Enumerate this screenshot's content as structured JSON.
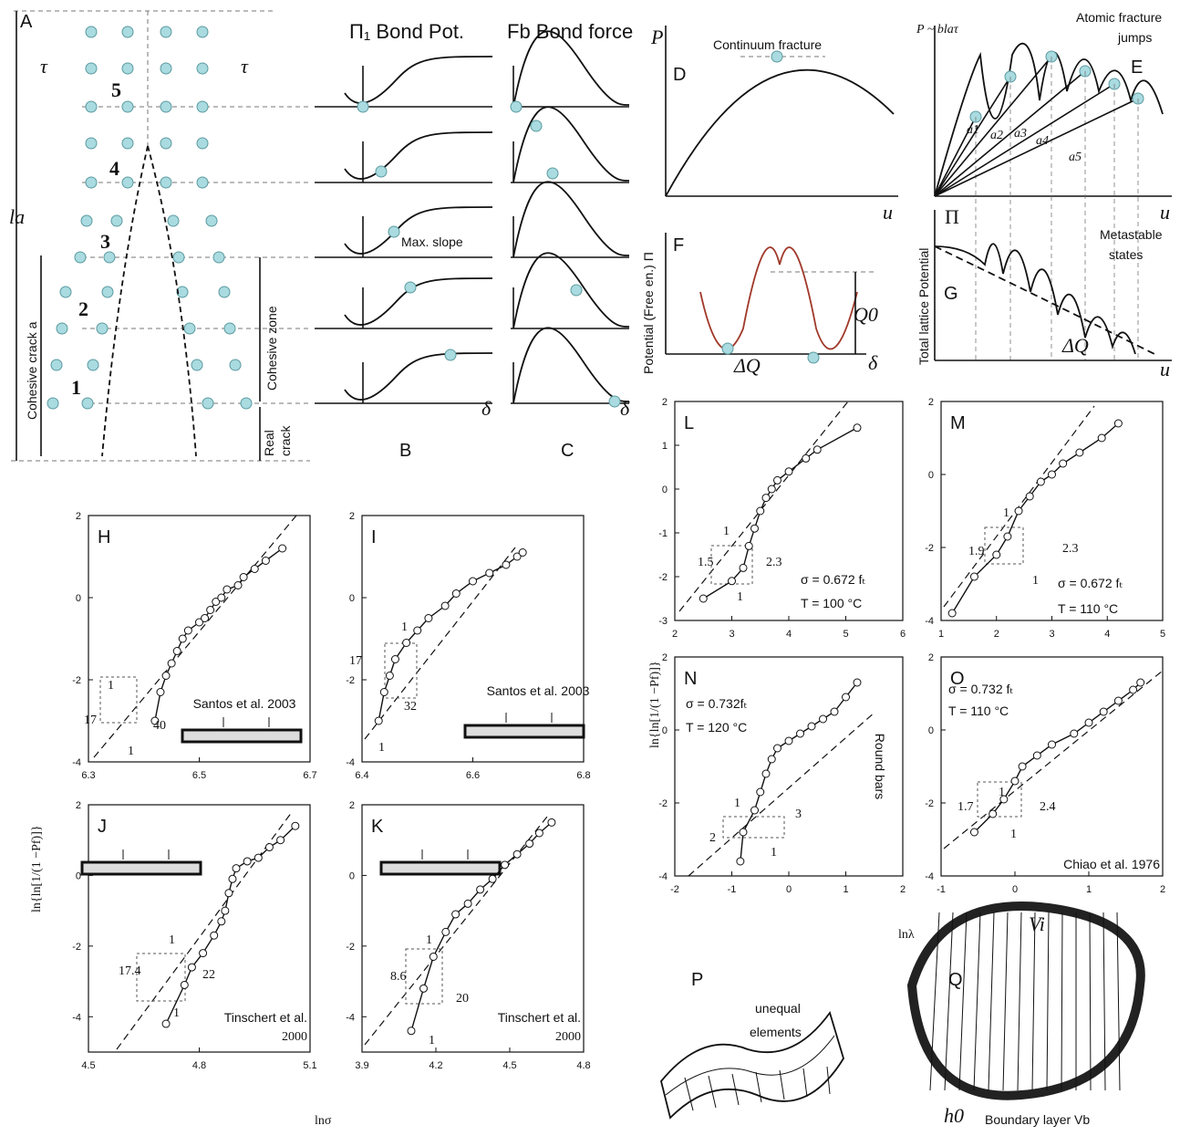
{
  "axis_labels": {
    "y_left": "ln{ln[1/(1 −Pf)]}",
    "x_left": "lnσ",
    "y_right": "ln{ln[1/(1 −Pf)]}",
    "x_right": "lnλ"
  },
  "diagram": {
    "A": {
      "letter": "A",
      "levels": [
        "5",
        "4",
        "3",
        "2",
        "1"
      ],
      "tau_left": "τ",
      "tau_right": "τ",
      "la": "la",
      "cohesive_crack": "Cohesive crack a",
      "cohesive_zone": "Cohesive zone",
      "real_crack": [
        "Real",
        "crack"
      ]
    },
    "B": {
      "title": "Π₁ Bond Pot.",
      "max_slope": "Max. slope",
      "delta": "δ",
      "letter": "B"
    },
    "C": {
      "title": "Fb Bond force",
      "delta": "δ",
      "letter": "C"
    },
    "D": {
      "y": "P",
      "label": "Continuum fracture",
      "letter": "D",
      "x": "u"
    },
    "E": {
      "y": "P ~ blaτ",
      "label": [
        "Atomic fracture",
        "jumps"
      ],
      "letter": "E",
      "x": "u",
      "secants": [
        "a1",
        "a2",
        "a3",
        "a4",
        "a5"
      ]
    },
    "F": {
      "y": "Potential (Free en.) Π",
      "letter": "F",
      "barrier": "Q0",
      "delta_q": "ΔQ",
      "x": "δ"
    },
    "G": {
      "pi": "Π",
      "y": "Total lattice Potential",
      "label": [
        "Metastable",
        "states"
      ],
      "letter": "G",
      "delta_q": "ΔQ",
      "x": "u"
    },
    "P": {
      "letter": "P",
      "label": [
        "unequal",
        "elements"
      ]
    },
    "Q": {
      "letter": "Q",
      "volume": "Vi",
      "thickness": "h0",
      "boundary": "Boundary layer Vb"
    }
  },
  "chart_data": [
    {
      "type": "scatter",
      "title": "H",
      "x": [
        6.42,
        6.43,
        6.44,
        6.45,
        6.46,
        6.47,
        6.48,
        6.5,
        6.51,
        6.52,
        6.53,
        6.54,
        6.55,
        6.57,
        6.58,
        6.6,
        6.62,
        6.65
      ],
      "values": [
        -3.0,
        -2.3,
        -1.9,
        -1.6,
        -1.3,
        -1.0,
        -0.8,
        -0.6,
        -0.5,
        -0.3,
        -0.1,
        0.0,
        0.2,
        0.3,
        0.5,
        0.7,
        0.9,
        1.2
      ],
      "xlim": [
        6.3,
        6.7
      ],
      "xticks": [
        6.3,
        6.5,
        6.7
      ],
      "ylim": [
        -4,
        2
      ],
      "yticks": [
        -4,
        -2,
        0,
        2
      ],
      "annotations": [
        "1",
        "17",
        "40",
        "1",
        "Santos et al. 2003"
      ]
    },
    {
      "type": "scatter",
      "title": "I",
      "x": [
        6.43,
        6.44,
        6.45,
        6.46,
        6.48,
        6.5,
        6.52,
        6.55,
        6.57,
        6.6,
        6.63,
        6.66,
        6.68,
        6.69
      ],
      "values": [
        -3.0,
        -2.3,
        -1.9,
        -1.5,
        -1.1,
        -0.8,
        -0.5,
        -0.2,
        0.1,
        0.4,
        0.6,
        0.8,
        1.0,
        1.1
      ],
      "xlim": [
        6.4,
        6.8
      ],
      "xticks": [
        6.4,
        6.6,
        6.8
      ],
      "ylim": [
        -4,
        2
      ],
      "yticks": [
        -4,
        -2,
        0,
        2
      ],
      "annotations": [
        "1",
        "17",
        "32",
        "1",
        "Santos et al. 2003"
      ]
    },
    {
      "type": "scatter",
      "title": "J",
      "x": [
        4.71,
        4.76,
        4.78,
        4.81,
        4.84,
        4.86,
        4.87,
        4.88,
        4.89,
        4.9,
        4.93,
        4.96,
        4.99,
        5.02,
        5.06
      ],
      "values": [
        -4.2,
        -3.1,
        -2.6,
        -2.2,
        -1.7,
        -1.3,
        -1.0,
        -0.5,
        -0.1,
        0.2,
        0.4,
        0.5,
        0.8,
        1.0,
        1.4
      ],
      "xlim": [
        4.5,
        5.1
      ],
      "xticks": [
        4.5,
        4.8,
        5.1
      ],
      "ylim": [
        -5,
        2
      ],
      "yticks": [
        -4,
        -2,
        0,
        2
      ],
      "annotations": [
        "1",
        "17.4",
        "22",
        "1",
        "Tinschert et al.",
        "2000"
      ]
    },
    {
      "type": "scatter",
      "title": "K",
      "x": [
        4.1,
        4.15,
        4.19,
        4.24,
        4.28,
        4.33,
        4.38,
        4.43,
        4.48,
        4.53,
        4.58,
        4.62,
        4.67
      ],
      "values": [
        -4.4,
        -3.2,
        -2.3,
        -1.6,
        -1.1,
        -0.8,
        -0.4,
        -0.1,
        0.3,
        0.6,
        0.9,
        1.2,
        1.5
      ],
      "xlim": [
        3.9,
        4.8
      ],
      "xticks": [
        3.9,
        4.2,
        4.5,
        4.8
      ],
      "ylim": [
        -5,
        2
      ],
      "yticks": [
        -4,
        -2,
        0,
        2
      ],
      "annotations": [
        "1",
        "8.6",
        "20",
        "1",
        "Tinschert et al.",
        "2000"
      ]
    },
    {
      "type": "scatter",
      "title": "L",
      "x": [
        2.5,
        3.0,
        3.2,
        3.3,
        3.4,
        3.5,
        3.6,
        3.7,
        3.8,
        4.0,
        4.3,
        4.5,
        5.2
      ],
      "values": [
        -2.5,
        -2.1,
        -1.8,
        -1.3,
        -0.9,
        -0.5,
        -0.2,
        0.0,
        0.2,
        0.4,
        0.7,
        0.9,
        1.4
      ],
      "xlim": [
        2,
        6
      ],
      "xticks": [
        2,
        3,
        4,
        5,
        6
      ],
      "ylim": [
        -3,
        2
      ],
      "yticks": [
        -3,
        -2,
        -1,
        0,
        1,
        2
      ],
      "annotations": [
        "1",
        "1.5",
        "2.3",
        "1",
        "σ = 0.672 fₜ",
        "T = 100 °C"
      ]
    },
    {
      "type": "scatter",
      "title": "M",
      "x": [
        1.2,
        1.6,
        2.0,
        2.2,
        2.4,
        2.6,
        2.8,
        3.0,
        3.2,
        3.5,
        3.9,
        4.2
      ],
      "values": [
        -3.8,
        -2.8,
        -2.2,
        -1.7,
        -1.0,
        -0.6,
        -0.2,
        0.0,
        0.3,
        0.6,
        1.0,
        1.4
      ],
      "xlim": [
        1,
        5
      ],
      "xticks": [
        1,
        2,
        3,
        4,
        5
      ],
      "ylim": [
        -4,
        2
      ],
      "yticks": [
        -4,
        -2,
        0,
        2
      ],
      "annotations": [
        "1",
        "1.9",
        "2.3",
        "1",
        "σ = 0.672 fₜ",
        "T = 110 °C"
      ]
    },
    {
      "type": "scatter",
      "title": "N",
      "x": [
        -0.85,
        -0.8,
        -0.6,
        -0.5,
        -0.4,
        -0.3,
        -0.2,
        0.0,
        0.2,
        0.4,
        0.6,
        0.8,
        1.0,
        1.2
      ],
      "values": [
        -3.6,
        -2.8,
        -2.2,
        -1.7,
        -1.2,
        -0.8,
        -0.5,
        -0.3,
        -0.1,
        0.1,
        0.3,
        0.5,
        0.9,
        1.3
      ],
      "xlim": [
        -2,
        2
      ],
      "xticks": [
        -2,
        -1,
        0,
        1,
        2
      ],
      "ylim": [
        -4,
        2
      ],
      "yticks": [
        -4,
        -2,
        0,
        2
      ],
      "annotations": [
        "1",
        "2",
        "3",
        "1",
        "σ = 0.732fₜ",
        "T = 120 °C",
        "Round bars"
      ]
    },
    {
      "type": "scatter",
      "title": "O",
      "x": [
        -0.55,
        -0.3,
        -0.15,
        0.0,
        0.1,
        0.3,
        0.5,
        0.8,
        1.0,
        1.2,
        1.4,
        1.6,
        1.7
      ],
      "values": [
        -2.8,
        -2.3,
        -1.9,
        -1.4,
        -1.0,
        -0.7,
        -0.4,
        -0.1,
        0.2,
        0.5,
        0.8,
        1.1,
        1.3
      ],
      "xlim": [
        -1,
        2
      ],
      "xticks": [
        -1,
        0,
        1,
        2
      ],
      "ylim": [
        -4,
        2
      ],
      "yticks": [
        -4,
        -2,
        0,
        2
      ],
      "annotations": [
        "1",
        "1.7",
        "2.4",
        "1",
        "σ = 0.732 fₜ",
        "T = 110 °C",
        "Chiao et al. 1976"
      ]
    }
  ]
}
